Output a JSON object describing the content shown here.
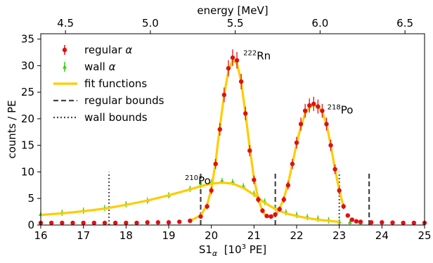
{
  "chart_data": {
    "type": "scatter",
    "xlabel": "S1",
    "xlabel_sub": "α",
    "xlabel_unit_pre": "[10",
    "xlabel_unit_sup": "3",
    "xlabel_unit_post": " PE]",
    "ylabel": "counts / PE",
    "top_xlabel": "energy [MeV]",
    "xlim": [
      16,
      25
    ],
    "ylim": [
      0,
      36
    ],
    "x_ticks": [
      "16",
      "17",
      "18",
      "19",
      "20",
      "21",
      "22",
      "23",
      "24",
      "25"
    ],
    "y_ticks": [
      "0",
      "5",
      "10",
      "15",
      "20",
      "25",
      "30",
      "35"
    ],
    "top_ticks": [
      {
        "label": "4.5",
        "x": 16.58
      },
      {
        "label": "5.0",
        "x": 18.57
      },
      {
        "label": "5.5",
        "x": 20.56
      },
      {
        "label": "6.0",
        "x": 22.55
      },
      {
        "label": "6.5",
        "x": 24.54
      }
    ],
    "annotations": [
      {
        "sup": "222",
        "text": "Rn",
        "x": 20.75,
        "y": 31.2
      },
      {
        "sup": "218",
        "text": "Po",
        "x": 22.72,
        "y": 21.0
      },
      {
        "sup": "210",
        "text": "Po",
        "x": 19.38,
        "y": 7.7
      }
    ],
    "legend": {
      "position": "top-left",
      "items": [
        {
          "label": "regular",
          "italic": "α",
          "style": "errorbar",
          "color": "#dd1111"
        },
        {
          "label": "wall",
          "italic": "α",
          "style": "errorbar",
          "color": "#33cc11"
        },
        {
          "label": "fit functions",
          "style": "line",
          "color": "#ffcc00"
        },
        {
          "label": "regular bounds",
          "style": "dashed",
          "color": "#444444"
        },
        {
          "label": "wall bounds",
          "style": "dotted",
          "color": "#444444"
        }
      ]
    },
    "series": [
      {
        "name": "regular α",
        "color": "#dd1111",
        "x": [
          16.0,
          16.25,
          16.5,
          16.75,
          17.0,
          17.25,
          17.5,
          17.75,
          18.0,
          18.25,
          18.5,
          18.75,
          19.0,
          19.25,
          19.5,
          19.75,
          19.9,
          20.0,
          20.1,
          20.2,
          20.3,
          20.4,
          20.5,
          20.6,
          20.7,
          20.8,
          20.9,
          21.0,
          21.1,
          21.2,
          21.3,
          21.4,
          21.5,
          21.6,
          21.7,
          21.8,
          21.9,
          22.0,
          22.1,
          22.2,
          22.3,
          22.4,
          22.5,
          22.6,
          22.7,
          22.8,
          22.9,
          23.0,
          23.1,
          23.2,
          23.3,
          23.4,
          23.5,
          23.75,
          24.0,
          24.25,
          24.5,
          24.75,
          25.0
        ],
        "y": [
          0.4,
          0.4,
          0.4,
          0.4,
          0.4,
          0.4,
          0.4,
          0.4,
          0.4,
          0.4,
          0.5,
          0.5,
          0.5,
          0.6,
          0.8,
          1.6,
          3.5,
          6.5,
          11.5,
          18.0,
          24.5,
          29.5,
          31.5,
          31.0,
          27.0,
          21.0,
          14.0,
          8.5,
          4.8,
          2.7,
          1.7,
          1.6,
          2.0,
          3.0,
          4.8,
          7.5,
          11.5,
          15.5,
          19.0,
          21.5,
          22.5,
          22.8,
          22.3,
          21.5,
          19.0,
          15.0,
          10.5,
          6.5,
          3.5,
          1.8,
          1.0,
          0.7,
          0.6,
          0.5,
          0.5,
          0.45,
          0.4,
          0.4,
          0.4
        ]
      },
      {
        "name": "wall α",
        "color": "#33cc11",
        "x": [
          16.0,
          16.5,
          17.0,
          17.5,
          18.0,
          18.5,
          19.0,
          19.5,
          19.75,
          20.0,
          20.25,
          20.5,
          20.75,
          21.0,
          21.25,
          21.5,
          21.75,
          22.0,
          22.25,
          22.5,
          22.75,
          23.0,
          23.25,
          23.5
        ],
        "y": [
          2.0,
          2.3,
          2.7,
          3.2,
          3.9,
          4.6,
          5.6,
          6.8,
          7.5,
          8.0,
          8.3,
          8.1,
          7.3,
          5.9,
          4.4,
          3.2,
          2.4,
          1.9,
          1.5,
          1.2,
          0.9,
          0.6,
          0.5,
          0.4
        ]
      }
    ],
    "fit_functions": [
      {
        "name": "regular fit",
        "x": [
          19.5,
          19.75,
          19.9,
          20.0,
          20.1,
          20.2,
          20.3,
          20.4,
          20.5,
          20.6,
          20.7,
          20.8,
          20.9,
          21.0,
          21.1,
          21.2,
          21.3,
          21.4,
          21.5,
          21.6,
          21.7,
          21.8,
          21.9,
          22.0,
          22.1,
          22.2,
          22.3,
          22.4,
          22.5,
          22.6,
          22.7,
          22.8,
          22.9,
          23.0,
          23.1
        ],
        "y": [
          0.8,
          1.8,
          3.8,
          6.8,
          11.8,
          18.5,
          24.5,
          29.0,
          31.0,
          30.5,
          27.0,
          21.0,
          14.5,
          8.8,
          4.9,
          2.6,
          1.6,
          1.5,
          1.9,
          3.1,
          5.0,
          7.8,
          11.5,
          15.3,
          18.6,
          21.0,
          22.2,
          22.6,
          22.3,
          21.3,
          19.0,
          15.0,
          10.5,
          6.5,
          3.5
        ]
      },
      {
        "name": "wall fit",
        "x": [
          16.0,
          16.5,
          17.0,
          17.5,
          18.0,
          18.5,
          19.0,
          19.5,
          19.75,
          20.0,
          20.25,
          20.5,
          20.75,
          21.0,
          21.25,
          21.5,
          21.75,
          22.0,
          22.25,
          22.5,
          22.75,
          23.0
        ],
        "y": [
          1.9,
          2.2,
          2.6,
          3.1,
          3.8,
          4.6,
          5.6,
          6.7,
          7.3,
          7.8,
          8.0,
          7.8,
          7.0,
          5.7,
          4.2,
          3.0,
          2.2,
          1.7,
          1.3,
          1.0,
          0.8,
          0.6
        ]
      }
    ],
    "regular_bounds": [
      19.75,
      21.5,
      23.7
    ],
    "wall_bounds": [
      17.6,
      23.0
    ],
    "bounds_height": 10.0
  }
}
